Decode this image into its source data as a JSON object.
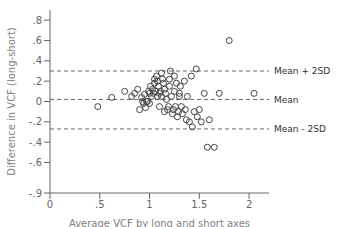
{
  "chart_data": {
    "type": "scatter",
    "xlabel": "Average VCF by long and short axes",
    "ylabel": "Difference in VCF (long-short)",
    "xlim": [
      0,
      2.2
    ],
    "ylim": [
      -0.9,
      0.9
    ],
    "xticks": [
      0,
      {
        "value": 0.5,
        "label": ".5"
      },
      1,
      1.5,
      2
    ],
    "yticks": [
      {
        "value": 0.8,
        "label": ".8"
      },
      {
        "value": 0.6,
        "label": ".6"
      },
      {
        "value": 0.4,
        "label": ".4"
      },
      {
        "value": 0.2,
        "label": ".2"
      },
      0,
      {
        "value": -0.2,
        "label": "-.2"
      },
      {
        "value": -0.4,
        "label": "-.4"
      },
      {
        "value": -0.6,
        "label": "-.6"
      },
      {
        "value": -0.9,
        "label": "-.9"
      }
    ],
    "color": "#444444",
    "marker": "open_circle",
    "reference_lines": [
      {
        "value": 0.02,
        "label": "Mean",
        "color": "#666666",
        "line_style": "dashed"
      },
      {
        "value": 0.3,
        "label": "Mean + 2SD",
        "color": "#666666",
        "line_style": "dashed"
      },
      {
        "value": -0.27,
        "label": "Mean - 2SD",
        "color": "#666666",
        "line_style": "dashed"
      }
    ],
    "x": [
      0.48,
      0.62,
      0.75,
      0.82,
      0.85,
      0.88,
      0.9,
      0.92,
      0.93,
      0.94,
      0.95,
      0.96,
      0.97,
      0.98,
      0.99,
      1.0,
      1.0,
      1.01,
      1.02,
      1.03,
      1.04,
      1.05,
      1.05,
      1.06,
      1.07,
      1.08,
      1.08,
      1.09,
      1.1,
      1.1,
      1.11,
      1.12,
      1.12,
      1.13,
      1.14,
      1.15,
      1.15,
      1.16,
      1.17,
      1.18,
      1.19,
      1.2,
      1.2,
      1.21,
      1.22,
      1.23,
      1.24,
      1.25,
      1.25,
      1.26,
      1.27,
      1.28,
      1.29,
      1.3,
      1.3,
      1.31,
      1.32,
      1.33,
      1.35,
      1.36,
      1.37,
      1.38,
      1.4,
      1.42,
      1.43,
      1.45,
      1.47,
      1.48,
      1.5,
      1.52,
      1.55,
      1.58,
      1.6,
      1.65,
      1.7,
      1.8,
      2.05
    ],
    "values": [
      -0.05,
      0.04,
      0.1,
      0.05,
      0.08,
      0.12,
      -0.08,
      0.04,
      0.0,
      -0.02,
      0.07,
      -0.06,
      0.0,
      0.0,
      0.1,
      -0.02,
      0.08,
      0.15,
      0.05,
      0.12,
      0.08,
      0.22,
      0.18,
      0.1,
      0.25,
      0.05,
      0.2,
      0.15,
      0.08,
      -0.05,
      0.1,
      0.05,
      0.28,
      0.22,
      0.18,
      0.12,
      -0.1,
      0.08,
      0.02,
      -0.08,
      -0.05,
      0.15,
      0.22,
      0.3,
      0.05,
      -0.12,
      -0.08,
      0.25,
      0.1,
      -0.05,
      0.18,
      -0.15,
      -0.1,
      0.08,
      0.05,
      0.15,
      -0.05,
      -0.12,
      0.2,
      -0.08,
      -0.18,
      0.05,
      -0.2,
      0.25,
      -0.25,
      -0.1,
      0.32,
      -0.15,
      -0.08,
      -0.2,
      0.08,
      -0.45,
      -0.18,
      -0.45,
      0.08,
      0.6,
      0.08
    ]
  }
}
